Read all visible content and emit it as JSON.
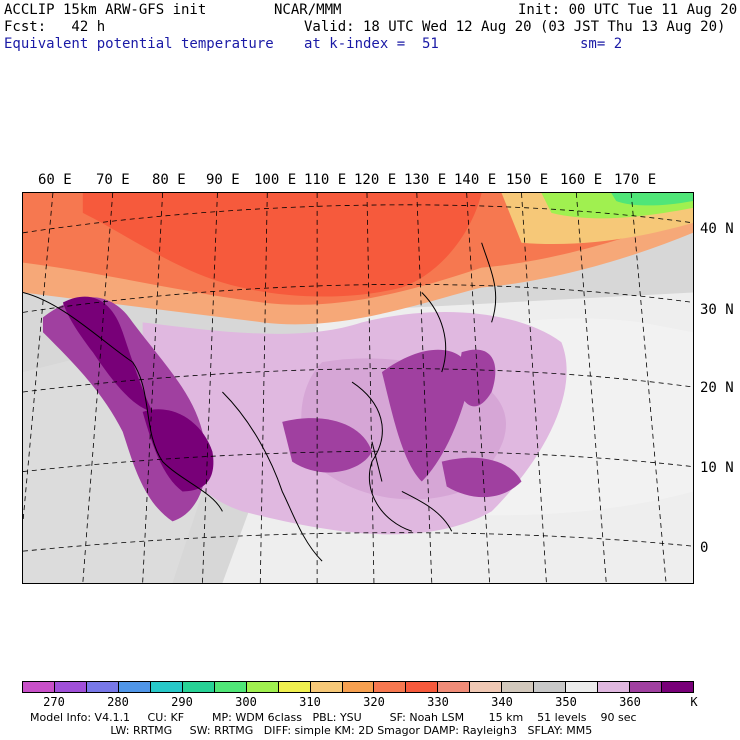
{
  "header": {
    "model": "ACCLIP 15km ARW-GFS init",
    "org": "NCAR/MMM",
    "init": "Init: 00 UTC Tue 11 Aug 20",
    "fcst": "Fcst:   42 h",
    "valid": "Valid: 18 UTC Wed 12 Aug 20 (03 JST Thu 13 Aug 20)",
    "field": "Equivalent potential temperature",
    "level": "at k-index =  51",
    "smooth": "sm= 2"
  },
  "map": {
    "lon_labels": [
      "60 E",
      "70 E",
      "80 E",
      "90 E",
      "100 E",
      "110 E",
      "120 E",
      "130 E",
      "140 E",
      "150 E",
      "160 E",
      "170 E"
    ],
    "lat_labels": [
      "40 N",
      "30 N",
      "20 N",
      "10 N",
      "0"
    ]
  },
  "colorbar": {
    "colors": [
      "#c850c8",
      "#a050d8",
      "#7878e8",
      "#5096e8",
      "#28c8c8",
      "#28d296",
      "#50e678",
      "#a0f050",
      "#f0f050",
      "#f6c878",
      "#f6a050",
      "#f67850",
      "#f65a3c",
      "#f08c78",
      "#f0c8b4",
      "#d2c8bc",
      "#c8c8c8",
      "#ececec",
      "#e0b8e0",
      "#a040a0",
      "#780078"
    ],
    "ticks": [
      "270",
      "280",
      "290",
      "300",
      "310",
      "320",
      "330",
      "340",
      "350",
      "360"
    ],
    "unit": "K"
  },
  "footer": {
    "line1": "Model Info: V4.1.1     CU: KF        MP: WDM 6class   PBL: YSU        SF: Noah LSM       15 km    51 levels    90 sec",
    "line2": "                       LW: RRTMG     SW: RRTMG   DIFF: simple KM: 2D Smagor DAMP: Rayleigh3   SFLAY: MM5"
  }
}
